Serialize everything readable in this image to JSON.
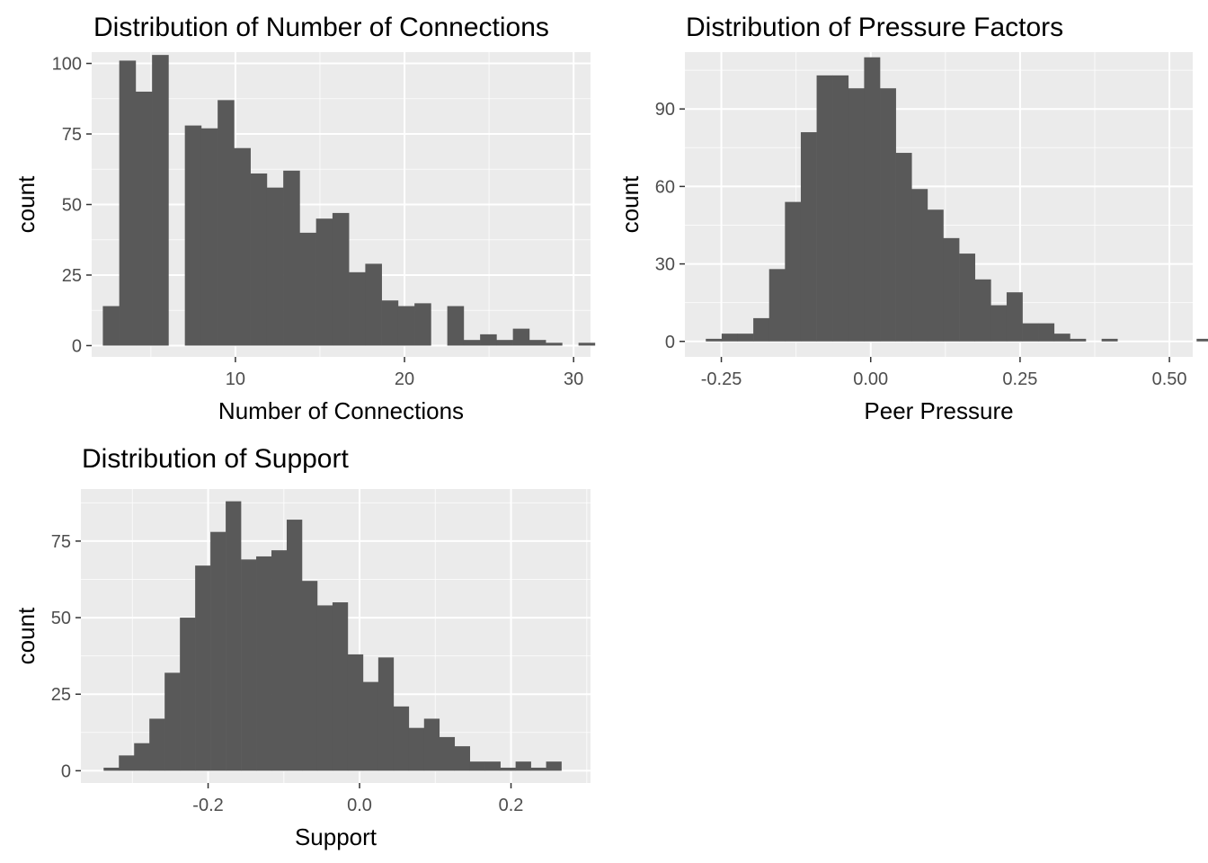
{
  "chart_data": [
    {
      "type": "bar",
      "title": "Distribution of Number of Connections",
      "xlabel": "Number of Connections",
      "ylabel": "count",
      "xlim": [
        1.5,
        31.0
      ],
      "ylim": [
        -4,
        104
      ],
      "xticks": [
        10,
        20,
        30
      ],
      "yticks": [
        0,
        25,
        50,
        75,
        100
      ],
      "xtick_labels": [
        "10",
        "20",
        "30"
      ],
      "ytick_labels": [
        "0",
        "25",
        "50",
        "75",
        "100"
      ],
      "bin_width": 0.97,
      "bin_start": 2.16,
      "values": [
        14,
        101,
        90,
        103,
        0,
        78,
        77,
        87,
        70,
        61,
        56,
        62,
        40,
        45,
        47,
        26,
        29,
        16,
        14,
        15,
        0,
        14,
        2,
        4,
        2,
        6,
        2,
        1,
        0,
        1
      ]
    },
    {
      "type": "bar",
      "title": "Distribution of Pressure Factors",
      "xlabel": "Peer Pressure",
      "ylabel": "count",
      "xlim": [
        -0.311,
        0.539
      ],
      "ylim": [
        -6,
        112
      ],
      "xticks": [
        -0.25,
        0.0,
        0.25,
        0.5
      ],
      "yticks": [
        0,
        30,
        60,
        90
      ],
      "xtick_labels": [
        "-0.25",
        "0.00",
        "0.25",
        "0.50"
      ],
      "ytick_labels": [
        "0",
        "30",
        "60",
        "90"
      ],
      "bin_width": 0.0265,
      "bin_start": -0.276,
      "values": [
        1,
        3,
        3,
        9,
        28,
        54,
        81,
        103,
        103,
        98,
        110,
        98,
        73,
        59,
        51,
        40,
        34,
        24,
        14,
        19,
        7,
        7,
        3,
        1,
        0,
        1,
        0,
        0,
        0,
        0,
        0,
        1
      ]
    },
    {
      "type": "bar",
      "title": "Distribution of Support",
      "xlabel": "Support",
      "ylabel": "count",
      "xlim": [
        -0.368,
        0.305
      ],
      "ylim": [
        -4,
        92
      ],
      "xticks": [
        -0.2,
        0.0,
        0.2
      ],
      "yticks": [
        0,
        25,
        50,
        75
      ],
      "xtick_labels": [
        "-0.2",
        "0.0",
        "0.2"
      ],
      "ytick_labels": [
        "0",
        "25",
        "50",
        "75"
      ],
      "bin_width": 0.02015,
      "bin_start": -0.338,
      "values": [
        1,
        5,
        9,
        17,
        32,
        50,
        67,
        78,
        88,
        69,
        70,
        72,
        82,
        62,
        54,
        55,
        38,
        29,
        37,
        21,
        14,
        17,
        11,
        8,
        3,
        3,
        1,
        3,
        1,
        3
      ]
    }
  ]
}
